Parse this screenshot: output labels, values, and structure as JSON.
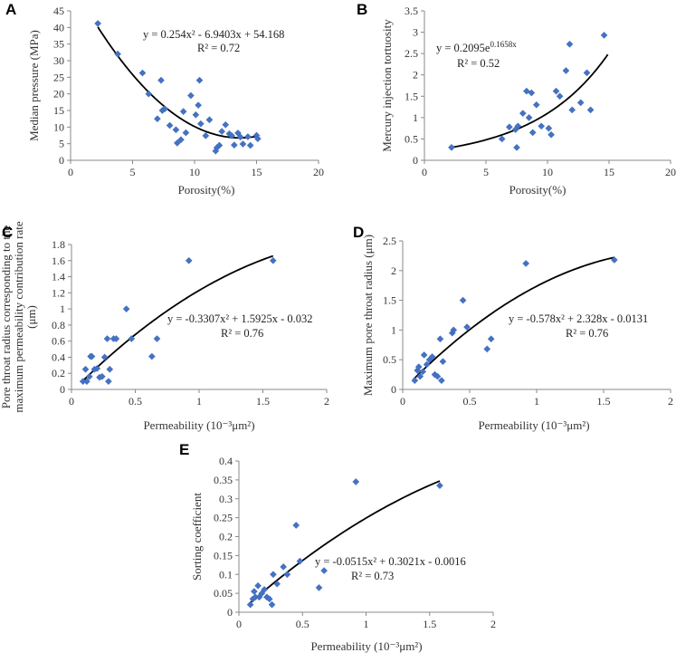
{
  "chart_data": [
    {
      "id": "A",
      "type": "scatter",
      "panel_label": "A",
      "xlabel": "Porosity(%)",
      "ylabel": "Median pressure (MPa)",
      "xlim": [
        0,
        20
      ],
      "ylim": [
        0,
        45
      ],
      "xticks": [
        0,
        5,
        10,
        15,
        20
      ],
      "yticks": [
        0,
        5,
        10,
        15,
        20,
        25,
        30,
        35,
        40,
        45
      ],
      "equation": "y = 0.254x² - 6.9403x + 54.168",
      "r2": "R² = 0.72",
      "fit": {
        "kind": "poly",
        "coef": [
          0.254,
          -6.9403,
          54.168
        ],
        "xrange": [
          2.2,
          15
        ]
      },
      "points": [
        [
          2.2,
          41.2
        ],
        [
          3.8,
          32
        ],
        [
          5.8,
          26.3
        ],
        [
          6.3,
          20
        ],
        [
          7,
          12.5
        ],
        [
          7.3,
          24.1
        ],
        [
          7.4,
          15
        ],
        [
          7.6,
          15.5
        ],
        [
          8,
          10.5
        ],
        [
          8.5,
          9.2
        ],
        [
          8.6,
          5.2
        ],
        [
          8.9,
          6.2
        ],
        [
          9.1,
          14.7
        ],
        [
          9.3,
          8.3
        ],
        [
          9.7,
          19.5
        ],
        [
          10.1,
          13.7
        ],
        [
          10.3,
          16.6
        ],
        [
          10.4,
          24.1
        ],
        [
          10.5,
          11
        ],
        [
          10.9,
          7.4
        ],
        [
          11.2,
          12.2
        ],
        [
          11.7,
          2.8
        ],
        [
          11.8,
          3.8
        ],
        [
          12,
          4.5
        ],
        [
          12.2,
          8.7
        ],
        [
          12.5,
          10.7
        ],
        [
          12.8,
          8
        ],
        [
          13,
          7.4
        ],
        [
          13.2,
          4.6
        ],
        [
          13.5,
          8.2
        ],
        [
          13.7,
          7
        ],
        [
          13.9,
          4.9
        ],
        [
          14.3,
          7.1
        ],
        [
          14.5,
          4.5
        ],
        [
          15,
          7.5
        ],
        [
          15.1,
          6.5
        ]
      ]
    },
    {
      "id": "B",
      "type": "scatter",
      "panel_label": "B",
      "xlabel": "Porosity(%)",
      "ylabel": "Mercury injection tortuosity",
      "xlim": [
        0,
        20
      ],
      "ylim": [
        0,
        3.5
      ],
      "xticks": [
        0,
        5,
        10,
        15,
        20
      ],
      "yticks": [
        0,
        0.5,
        1,
        1.5,
        2,
        2.5,
        3,
        3.5
      ],
      "equation": "y = 0.2095e",
      "equation_sup": "0.1658x",
      "r2": "R² = 0.52",
      "fit": {
        "kind": "exp",
        "a": 0.2095,
        "b": 0.1658,
        "xrange": [
          2.2,
          14.9
        ]
      },
      "points": [
        [
          2.2,
          0.3
        ],
        [
          6.3,
          0.5
        ],
        [
          6.9,
          0.78
        ],
        [
          7.4,
          0.72
        ],
        [
          7.5,
          0.3
        ],
        [
          7.6,
          0.8
        ],
        [
          8,
          1.1
        ],
        [
          8.3,
          1.62
        ],
        [
          8.5,
          1.0
        ],
        [
          8.7,
          1.58
        ],
        [
          8.8,
          0.65
        ],
        [
          9.1,
          1.3
        ],
        [
          9.5,
          0.8
        ],
        [
          10.1,
          0.75
        ],
        [
          10.3,
          0.6
        ],
        [
          10.7,
          1.62
        ],
        [
          11,
          1.5
        ],
        [
          11.5,
          2.1
        ],
        [
          11.8,
          2.72
        ],
        [
          12,
          1.18
        ],
        [
          12.7,
          1.35
        ],
        [
          13.2,
          2.05
        ],
        [
          13.5,
          1.18
        ],
        [
          14.6,
          2.93
        ]
      ]
    },
    {
      "id": "C",
      "type": "scatter",
      "panel_label": "C",
      "xlabel": "Permeability (10⁻³μm²)",
      "ylabel_lines": [
        "Pore throat radius corresponding to the",
        "maximum permeability contribution rate",
        "(μm)"
      ],
      "xlim": [
        0,
        2
      ],
      "ylim": [
        0,
        1.8
      ],
      "xticks": [
        0,
        0.5,
        1,
        1.5,
        2
      ],
      "yticks": [
        0,
        0.2,
        0.4,
        0.6,
        0.8,
        1,
        1.2,
        1.4,
        1.6,
        1.8
      ],
      "equation": "y = -0.3307x² + 1.5925x - 0.032",
      "r2": "R² = 0.76",
      "fit": {
        "kind": "poly",
        "coef": [
          -0.3307,
          1.5925,
          -0.032
        ],
        "xrange": [
          0.08,
          1.58
        ]
      },
      "points": [
        [
          0.09,
          0.1
        ],
        [
          0.11,
          0.25
        ],
        [
          0.12,
          0.1
        ],
        [
          0.14,
          0.16
        ],
        [
          0.15,
          0.41
        ],
        [
          0.16,
          0.41
        ],
        [
          0.18,
          0.25
        ],
        [
          0.2,
          0.26
        ],
        [
          0.22,
          0.15
        ],
        [
          0.24,
          0.16
        ],
        [
          0.26,
          0.4
        ],
        [
          0.28,
          0.63
        ],
        [
          0.29,
          0.1
        ],
        [
          0.3,
          0.25
        ],
        [
          0.33,
          0.63
        ],
        [
          0.35,
          0.63
        ],
        [
          0.43,
          1.0
        ],
        [
          0.47,
          0.63
        ],
        [
          0.63,
          0.41
        ],
        [
          0.67,
          0.63
        ],
        [
          0.92,
          1.6
        ],
        [
          1.58,
          1.6
        ]
      ]
    },
    {
      "id": "D",
      "type": "scatter",
      "panel_label": "D",
      "xlabel": "Permeability (10⁻³μm²)",
      "ylabel": "Maximum pore throat radius (μm)",
      "xlim": [
        0,
        2
      ],
      "ylim": [
        0,
        2.5
      ],
      "xticks": [
        0,
        0.5,
        1,
        1.5,
        2
      ],
      "yticks": [
        0,
        0.5,
        1,
        1.5,
        2,
        2.5
      ],
      "equation": "y = -0.578x² + 2.328x - 0.0131",
      "r2": "R² = 0.76",
      "fit": {
        "kind": "poly",
        "coef": [
          -0.578,
          2.328,
          -0.0131
        ],
        "xrange": [
          0.08,
          1.58
        ]
      },
      "points": [
        [
          0.09,
          0.15
        ],
        [
          0.11,
          0.32
        ],
        [
          0.12,
          0.38
        ],
        [
          0.13,
          0.22
        ],
        [
          0.15,
          0.3
        ],
        [
          0.16,
          0.58
        ],
        [
          0.18,
          0.42
        ],
        [
          0.2,
          0.5
        ],
        [
          0.22,
          0.55
        ],
        [
          0.24,
          0.25
        ],
        [
          0.26,
          0.22
        ],
        [
          0.28,
          0.85
        ],
        [
          0.29,
          0.15
        ],
        [
          0.3,
          0.47
        ],
        [
          0.37,
          0.95
        ],
        [
          0.38,
          1.0
        ],
        [
          0.45,
          1.5
        ],
        [
          0.48,
          1.05
        ],
        [
          0.63,
          0.68
        ],
        [
          0.66,
          0.85
        ],
        [
          0.92,
          2.12
        ],
        [
          1.58,
          2.18
        ]
      ]
    },
    {
      "id": "E",
      "type": "scatter",
      "panel_label": "E",
      "xlabel": "Permeability (10⁻³μm²)",
      "ylabel": "Sorting coefficient",
      "xlim": [
        0,
        2
      ],
      "ylim": [
        0,
        0.4
      ],
      "xticks": [
        0,
        0.5,
        1,
        1.5,
        2
      ],
      "yticks": [
        0,
        0.05,
        0.1,
        0.15,
        0.2,
        0.25,
        0.3,
        0.35,
        0.4
      ],
      "equation": "y = -0.0515x² + 0.3021x - 0.0016",
      "r2": "R² = 0.73",
      "fit": {
        "kind": "poly",
        "coef": [
          -0.0515,
          0.3021,
          -0.0016
        ],
        "xrange": [
          0.08,
          1.58
        ]
      },
      "points": [
        [
          0.09,
          0.02
        ],
        [
          0.11,
          0.035
        ],
        [
          0.12,
          0.055
        ],
        [
          0.13,
          0.04
        ],
        [
          0.15,
          0.07
        ],
        [
          0.16,
          0.04
        ],
        [
          0.18,
          0.05
        ],
        [
          0.2,
          0.06
        ],
        [
          0.22,
          0.04
        ],
        [
          0.24,
          0.035
        ],
        [
          0.26,
          0.02
        ],
        [
          0.27,
          0.1
        ],
        [
          0.3,
          0.075
        ],
        [
          0.35,
          0.12
        ],
        [
          0.38,
          0.1
        ],
        [
          0.45,
          0.23
        ],
        [
          0.48,
          0.135
        ],
        [
          0.63,
          0.065
        ],
        [
          0.67,
          0.11
        ],
        [
          0.92,
          0.345
        ],
        [
          1.58,
          0.335
        ]
      ]
    }
  ]
}
